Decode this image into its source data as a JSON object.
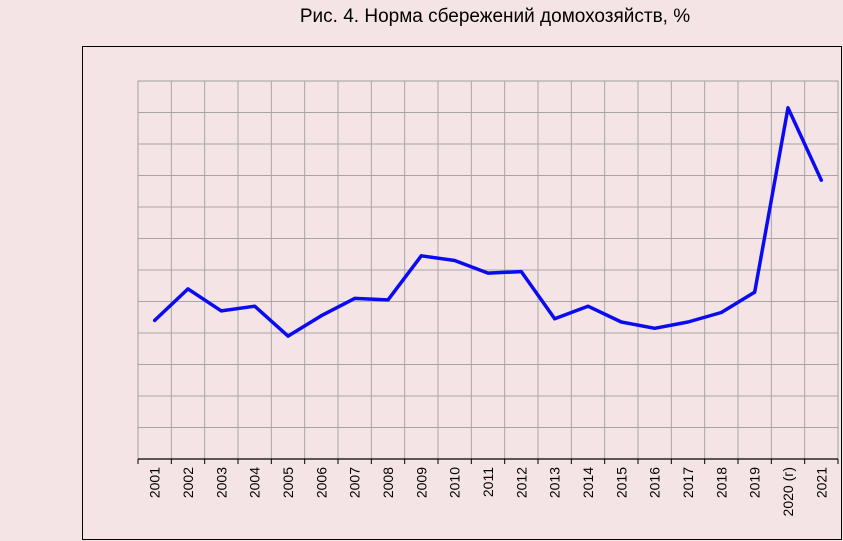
{
  "chart_data": {
    "type": "line",
    "title": "Рис. 4. Норма сбережений домохозяйств, %",
    "xlabel": "",
    "ylabel": "",
    "categories": [
      "2001",
      "2002",
      "2003",
      "2004",
      "2005",
      "2006",
      "2007",
      "2008",
      "2009",
      "2010",
      "2011",
      "2012",
      "2013",
      "2014",
      "2015",
      "2016",
      "2017",
      "2018",
      "2019",
      "2020 (г)",
      "2021"
    ],
    "series": [
      {
        "name": "",
        "values": [
          4.4,
          5.4,
          4.7,
          4.85,
          3.9,
          4.55,
          5.1,
          5.05,
          6.45,
          6.3,
          5.9,
          5.95,
          4.45,
          4.85,
          4.35,
          4.15,
          4.35,
          4.65,
          5.3,
          11.15,
          8.85
        ]
      }
    ],
    "ylim": [
      0,
      12
    ],
    "grid": true,
    "legend": "none",
    "line_color": "#0b0bf2"
  }
}
